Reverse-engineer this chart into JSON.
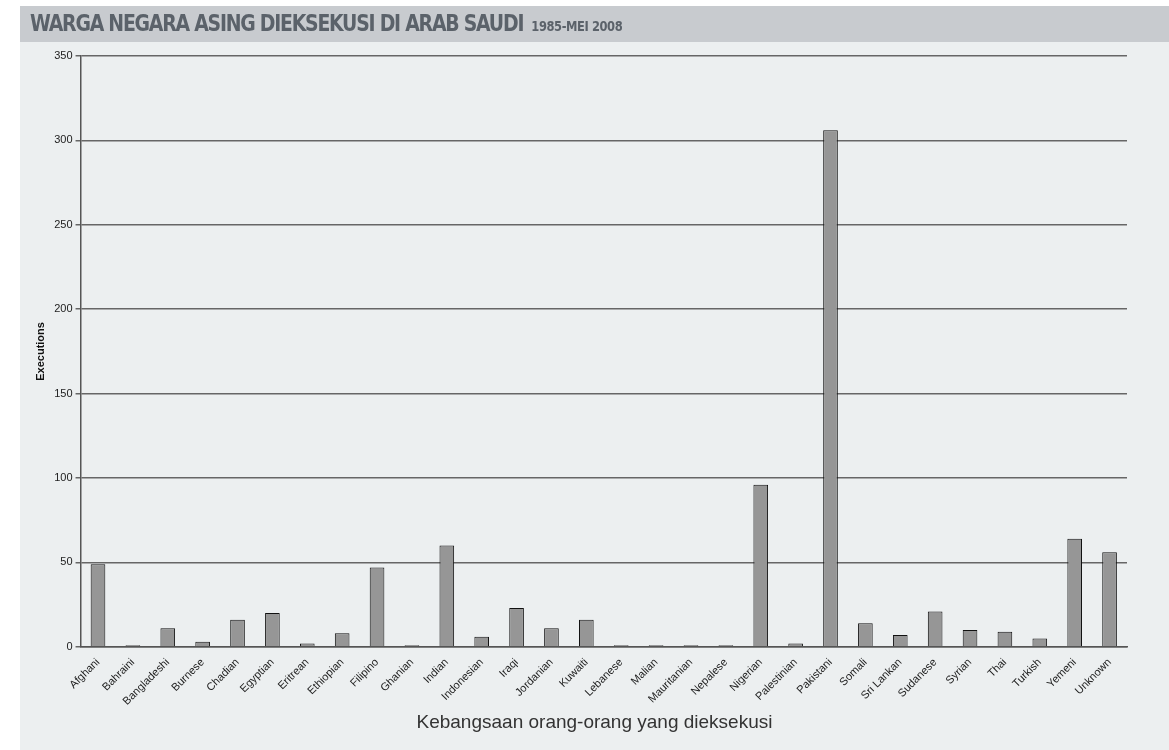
{
  "chart_data": {
    "type": "bar",
    "title": "WARGA NEGARA ASING DIEKSEKUSI DI ARAB SAUDI",
    "subtitle": "1985-MEI 2008",
    "xlabel": "Kebangsaan orang-orang yang dieksekusi",
    "ylabel": "Executions",
    "categories": [
      "Afghani",
      "Bahraini",
      "Bangladeshi",
      "Burnese",
      "Chadian",
      "Egyptian",
      "Eritrean",
      "Ethiopian",
      "Filipino",
      "Ghanian",
      "Indian",
      "Indonesian",
      "Iraqi",
      "Jordanian",
      "Kuwaiti",
      "Lebanese",
      "Malian",
      "Mauritanian",
      "Nepalese",
      "Nigerian",
      "Palestinian",
      "Pakistani",
      "Somali",
      "Sri Lankan",
      "Sudanese",
      "Syrian",
      "Thai",
      "Turkish",
      "Yemeni",
      "Unknown"
    ],
    "values": [
      49,
      1,
      11,
      3,
      16,
      20,
      2,
      8,
      47,
      1,
      60,
      6,
      23,
      11,
      16,
      1,
      1,
      1,
      1,
      96,
      2,
      306,
      14,
      7,
      21,
      10,
      9,
      5,
      64,
      56
    ],
    "color": "#969696",
    "ylim": [
      0,
      350
    ],
    "yticks": [
      0,
      50,
      100,
      150,
      200,
      250,
      300,
      350
    ],
    "grid": "y",
    "legend": false
  }
}
